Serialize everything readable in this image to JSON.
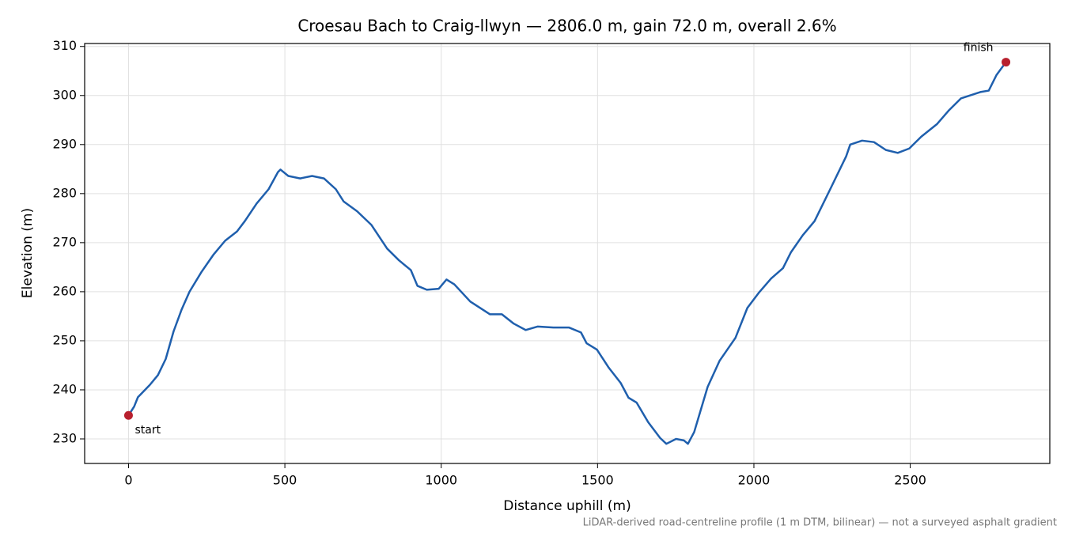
{
  "chart_data": {
    "type": "line",
    "title": "Croesau Bach to Craig-llwyn — 2806.0 m, gain 72.0 m, overall 2.6%",
    "xlabel": "Distance uphill (m)",
    "ylabel": "Elevation (m)",
    "footnote": "LiDAR-derived road-centreline profile (1 m DTM, bilinear) — not a surveyed asphalt gradient",
    "x": [
      0,
      18,
      30,
      68,
      94,
      119,
      144,
      170,
      195,
      233,
      271,
      309,
      347,
      372,
      410,
      448,
      478,
      486,
      511,
      549,
      587,
      625,
      663,
      688,
      731,
      777,
      827,
      865,
      903,
      924,
      954,
      992,
      1017,
      1042,
      1093,
      1156,
      1194,
      1232,
      1270,
      1308,
      1359,
      1409,
      1447,
      1465,
      1498,
      1536,
      1574,
      1599,
      1625,
      1662,
      1700,
      1720,
      1751,
      1776,
      1789,
      1809,
      1852,
      1890,
      1941,
      1979,
      2017,
      2055,
      2093,
      2118,
      2156,
      2194,
      2244,
      2295,
      2308,
      2346,
      2384,
      2422,
      2460,
      2497,
      2535,
      2586,
      2624,
      2662,
      2724,
      2751,
      2776,
      2806
    ],
    "series": [
      {
        "name": "Elevation",
        "color": "#1f5fad",
        "values": [
          234.8,
          236.6,
          238.5,
          241,
          243,
          246.3,
          251.9,
          256.4,
          260,
          264,
          267.5,
          270.4,
          272.3,
          274.4,
          278,
          280.9,
          284.4,
          284.9,
          283.6,
          283.1,
          283.6,
          283.1,
          280.9,
          278.4,
          276.4,
          273.6,
          268.8,
          266.4,
          264.4,
          261.2,
          260.4,
          260.6,
          262.5,
          261.5,
          258,
          255.4,
          255.4,
          253.5,
          252.2,
          252.9,
          252.7,
          252.7,
          251.7,
          249.5,
          248.2,
          244.5,
          241.4,
          238.4,
          237.4,
          233.4,
          230.2,
          229,
          230,
          229.7,
          229,
          231.4,
          240.6,
          245.9,
          250.6,
          256.7,
          259.9,
          262.7,
          264.8,
          268,
          271.5,
          274.4,
          280.9,
          287.6,
          290,
          290.8,
          290.5,
          288.9,
          288.3,
          289.2,
          291.6,
          294.2,
          297,
          299.4,
          300.7,
          301,
          304.2,
          306.8
        ]
      }
    ],
    "annotations": [
      {
        "text": "start",
        "x": 0,
        "y": 234.8
      },
      {
        "text": "finish",
        "x": 2806,
        "y": 306.8
      }
    ],
    "marker_color": "#b8202e",
    "xlim": [
      -140.3,
      2946.3
    ],
    "ylim": [
      225.0,
      310.6
    ],
    "xticks": [
      0,
      500,
      1000,
      1500,
      2000,
      2500
    ],
    "yticks": [
      230,
      240,
      250,
      260,
      270,
      280,
      290,
      300,
      310
    ],
    "grid": true
  }
}
